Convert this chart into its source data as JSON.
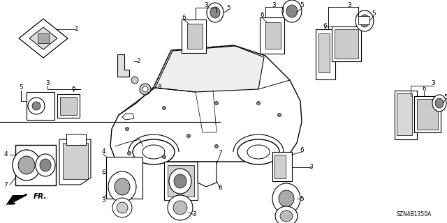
{
  "background_color": "#ffffff",
  "diagram_code": "SZN4B1350A",
  "line_color": "#000000",
  "text_color": "#000000",
  "label_fontsize": 6.5,
  "diagram_code_fontsize": 5.5
}
